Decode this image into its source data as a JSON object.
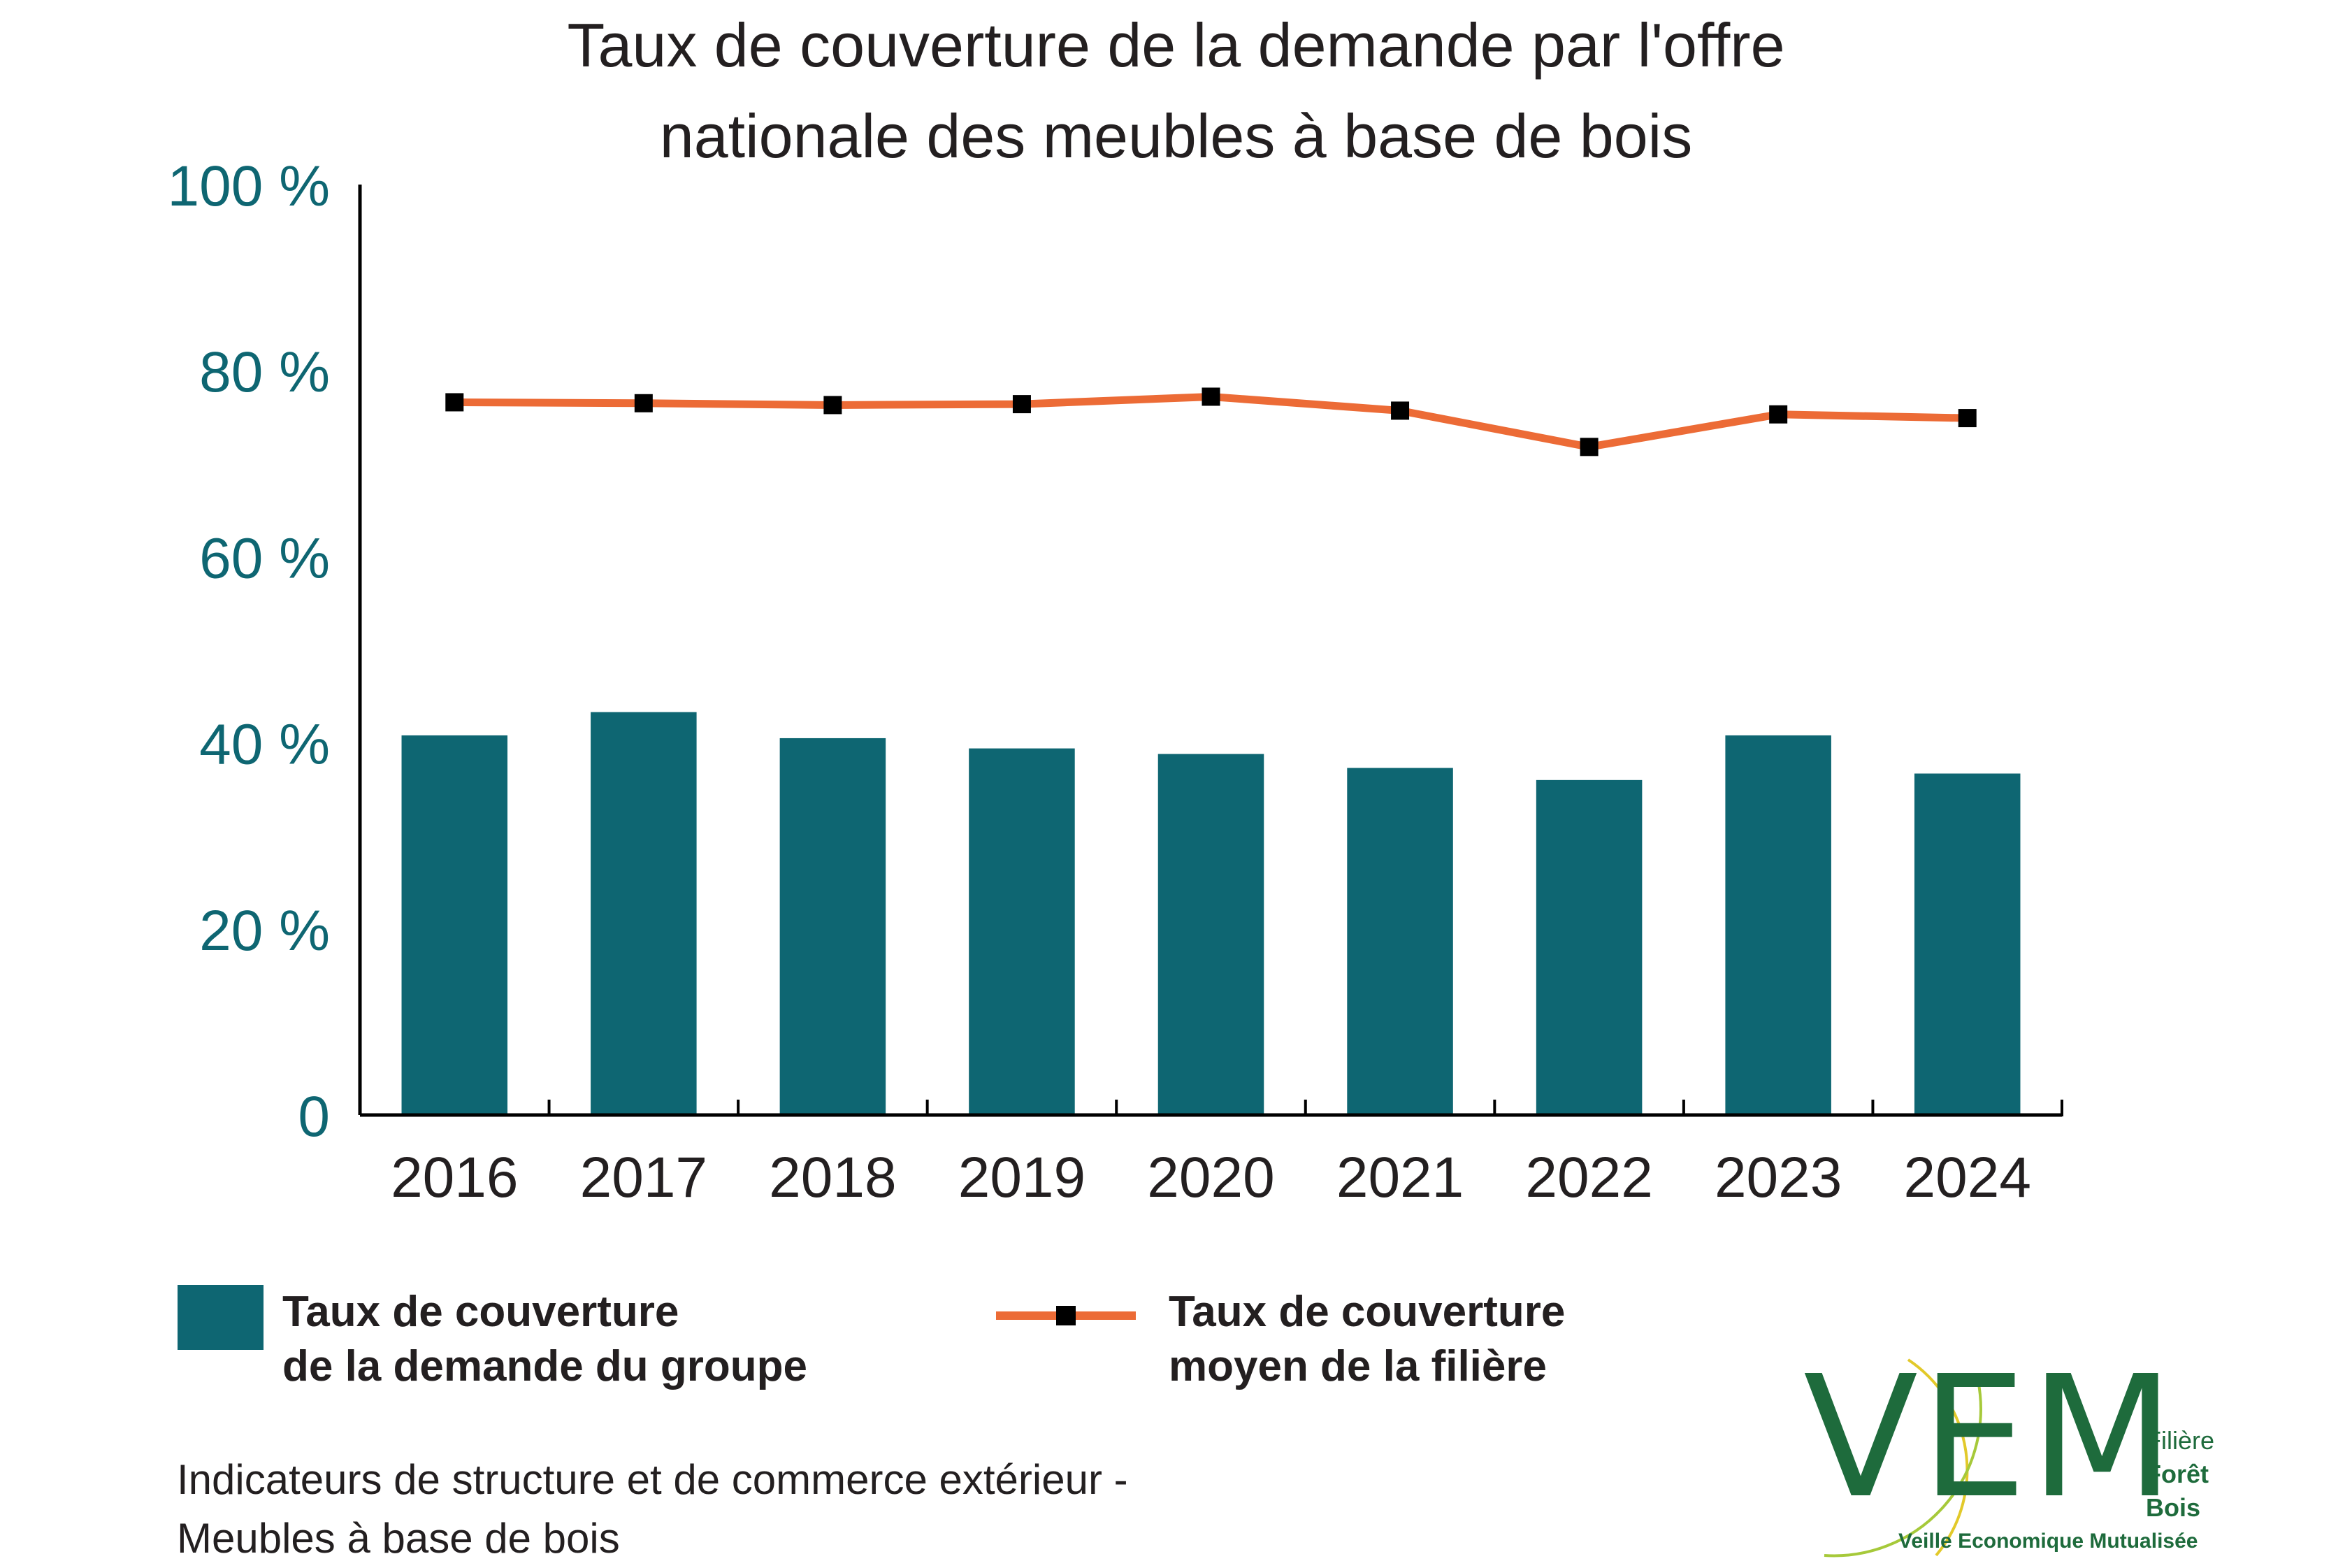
{
  "chart_data": {
    "type": "bar",
    "title": [
      "Taux de couverture de la demande par l'offre",
      "nationale des meubles à base de bois"
    ],
    "categories": [
      "2016",
      "2017",
      "2018",
      "2019",
      "2020",
      "2021",
      "2022",
      "2023",
      "2024"
    ],
    "y_tick_labels": [
      "0",
      "20 %",
      "40 %",
      "60 %",
      "80 %",
      "100 %"
    ],
    "ylim": [
      0,
      100
    ],
    "grid": false,
    "legend_position": "bottom",
    "series": [
      {
        "name_lines": [
          "Taux de couverture",
          "de la demande du groupe"
        ],
        "type": "bar",
        "color": "#0e6672",
        "values": [
          40.8,
          43.3,
          40.5,
          39.4,
          38.8,
          37.3,
          36.0,
          40.8,
          36.7
        ]
      },
      {
        "name_lines": [
          "Taux de couverture",
          "moyen de la filière"
        ],
        "type": "line",
        "color": "#ec6b36",
        "marker_color": "#000000",
        "values": [
          76.6,
          76.5,
          76.3,
          76.4,
          77.2,
          75.7,
          71.8,
          75.3,
          74.9
        ]
      }
    ],
    "colors": {
      "axis_text": "#0e6672",
      "x_text": "#231f20"
    }
  },
  "footer": [
    "Indicateurs de structure et de commerce extérieur -",
    "Meubles à base de bois"
  ],
  "logo": {
    "letters": "VEM",
    "side_lines": [
      "Filière",
      "Forêt",
      "Bois"
    ],
    "subtitle": "Veille Economique Mutualisée",
    "colors": {
      "green": "#1e6b3c",
      "yellow": "#e2c92a",
      "lime": "#a6c93a"
    }
  }
}
